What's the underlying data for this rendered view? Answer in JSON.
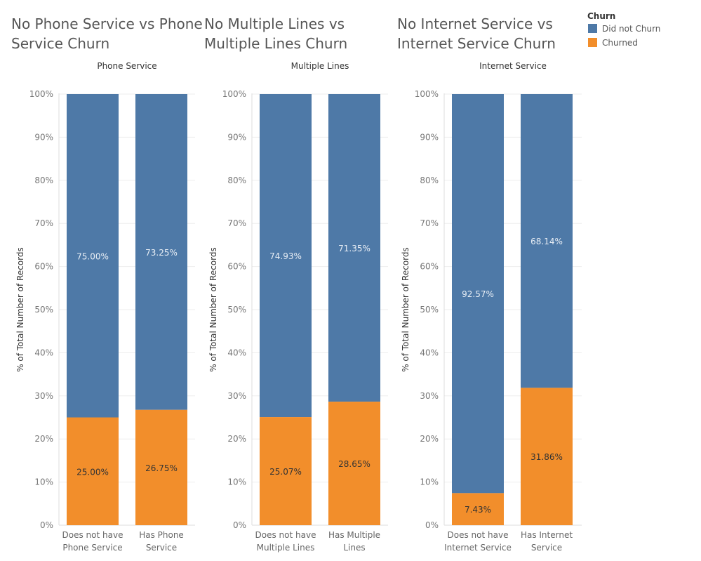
{
  "legend": {
    "title": "Churn",
    "items": [
      {
        "label": "Did not Churn",
        "color": "#4e79a7"
      },
      {
        "label": "Churned",
        "color": "#f28e2b"
      }
    ]
  },
  "chart_data": [
    {
      "type": "bar",
      "stacked": true,
      "title": "No Phone Service vs Phone Service Churn",
      "title_lines": [
        "No Phone Service vs Phone",
        "Service Churn"
      ],
      "header": "Phone Service",
      "ylabel": "% of Total Number of Records",
      "ylim": [
        0,
        100
      ],
      "yticks": [
        "0%",
        "10%",
        "20%",
        "30%",
        "40%",
        "50%",
        "60%",
        "70%",
        "80%",
        "90%",
        "100%"
      ],
      "categories": [
        [
          "Does not have",
          "Phone Service"
        ],
        [
          "Has Phone",
          "Service"
        ]
      ],
      "series": [
        {
          "name": "Churned",
          "values": [
            25.0,
            26.75
          ],
          "labels": [
            "25.00%",
            "26.75%"
          ],
          "color": "#f28e2b"
        },
        {
          "name": "Did not Churn",
          "values": [
            75.0,
            73.25
          ],
          "labels": [
            "75.00%",
            "73.25%"
          ],
          "color": "#4e79a7"
        }
      ],
      "grid": true
    },
    {
      "type": "bar",
      "stacked": true,
      "title": "No Multiple Lines vs Multiple Lines Churn",
      "title_lines": [
        "No Multiple Lines vs",
        "Multiple Lines Churn"
      ],
      "header": "Multiple Lines",
      "ylabel": "% of Total Number of Records",
      "ylim": [
        0,
        100
      ],
      "yticks": [
        "0%",
        "10%",
        "20%",
        "30%",
        "40%",
        "50%",
        "60%",
        "70%",
        "80%",
        "90%",
        "100%"
      ],
      "categories": [
        [
          "Does not have",
          "Multiple Lines"
        ],
        [
          "Has Multiple",
          "Lines"
        ]
      ],
      "series": [
        {
          "name": "Churned",
          "values": [
            25.07,
            28.65
          ],
          "labels": [
            "25.07%",
            "28.65%"
          ],
          "color": "#f28e2b"
        },
        {
          "name": "Did not Churn",
          "values": [
            74.93,
            71.35
          ],
          "labels": [
            "74.93%",
            "71.35%"
          ],
          "color": "#4e79a7"
        }
      ],
      "grid": true
    },
    {
      "type": "bar",
      "stacked": true,
      "title": "No Internet Service vs Internet Service Churn",
      "title_lines": [
        "No Internet Service vs",
        "Internet Service Churn"
      ],
      "header": "Internet Service",
      "ylabel": "% of Total Number of Records",
      "ylim": [
        0,
        100
      ],
      "yticks": [
        "0%",
        "10%",
        "20%",
        "30%",
        "40%",
        "50%",
        "60%",
        "70%",
        "80%",
        "90%",
        "100%"
      ],
      "categories": [
        [
          "Does not have",
          "Internet Service"
        ],
        [
          "Has Internet",
          "Service"
        ]
      ],
      "series": [
        {
          "name": "Churned",
          "values": [
            7.43,
            31.86
          ],
          "labels": [
            "7.43%",
            "31.86%"
          ],
          "color": "#f28e2b"
        },
        {
          "name": "Did not Churn",
          "values": [
            92.57,
            68.14
          ],
          "labels": [
            "92.57%",
            "68.14%"
          ],
          "color": "#4e79a7"
        }
      ],
      "grid": true
    }
  ]
}
